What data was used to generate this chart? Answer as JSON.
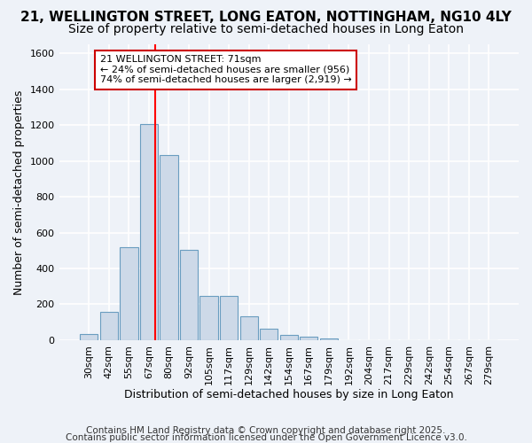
{
  "title1": "21, WELLINGTON STREET, LONG EATON, NOTTINGHAM, NG10 4LY",
  "title2": "Size of property relative to semi-detached houses in Long Eaton",
  "xlabel": "Distribution of semi-detached houses by size in Long Eaton",
  "ylabel": "Number of semi-detached properties",
  "categories": [
    "30sqm",
    "42sqm",
    "55sqm",
    "67sqm",
    "80sqm",
    "92sqm",
    "105sqm",
    "117sqm",
    "129sqm",
    "142sqm",
    "154sqm",
    "167sqm",
    "179sqm",
    "192sqm",
    "204sqm",
    "217sqm",
    "229sqm",
    "242sqm",
    "254sqm",
    "267sqm",
    "279sqm"
  ],
  "values": [
    35,
    160,
    520,
    1205,
    1030,
    505,
    245,
    245,
    135,
    65,
    30,
    20,
    10,
    0,
    0,
    0,
    0,
    0,
    0,
    0,
    0
  ],
  "bar_color": "#cdd9e8",
  "bar_edge_color": "#6a9dc0",
  "annotation_line1": "21 WELLINGTON STREET: 71sqm",
  "annotation_line2": "← 24% of semi-detached houses are smaller (956)",
  "annotation_line3": "74% of semi-detached houses are larger (2,919) →",
  "annotation_box_color": "#ffffff",
  "annotation_box_edge": "#cc0000",
  "footer1": "Contains HM Land Registry data © Crown copyright and database right 2025.",
  "footer2": "Contains public sector information licensed under the Open Government Licence v3.0.",
  "ylim": [
    0,
    1650
  ],
  "bg_color": "#eef2f8",
  "grid_color": "#ffffff",
  "title1_fontsize": 11,
  "title2_fontsize": 10,
  "axis_label_fontsize": 9,
  "tick_fontsize": 8,
  "footer_fontsize": 7.5
}
